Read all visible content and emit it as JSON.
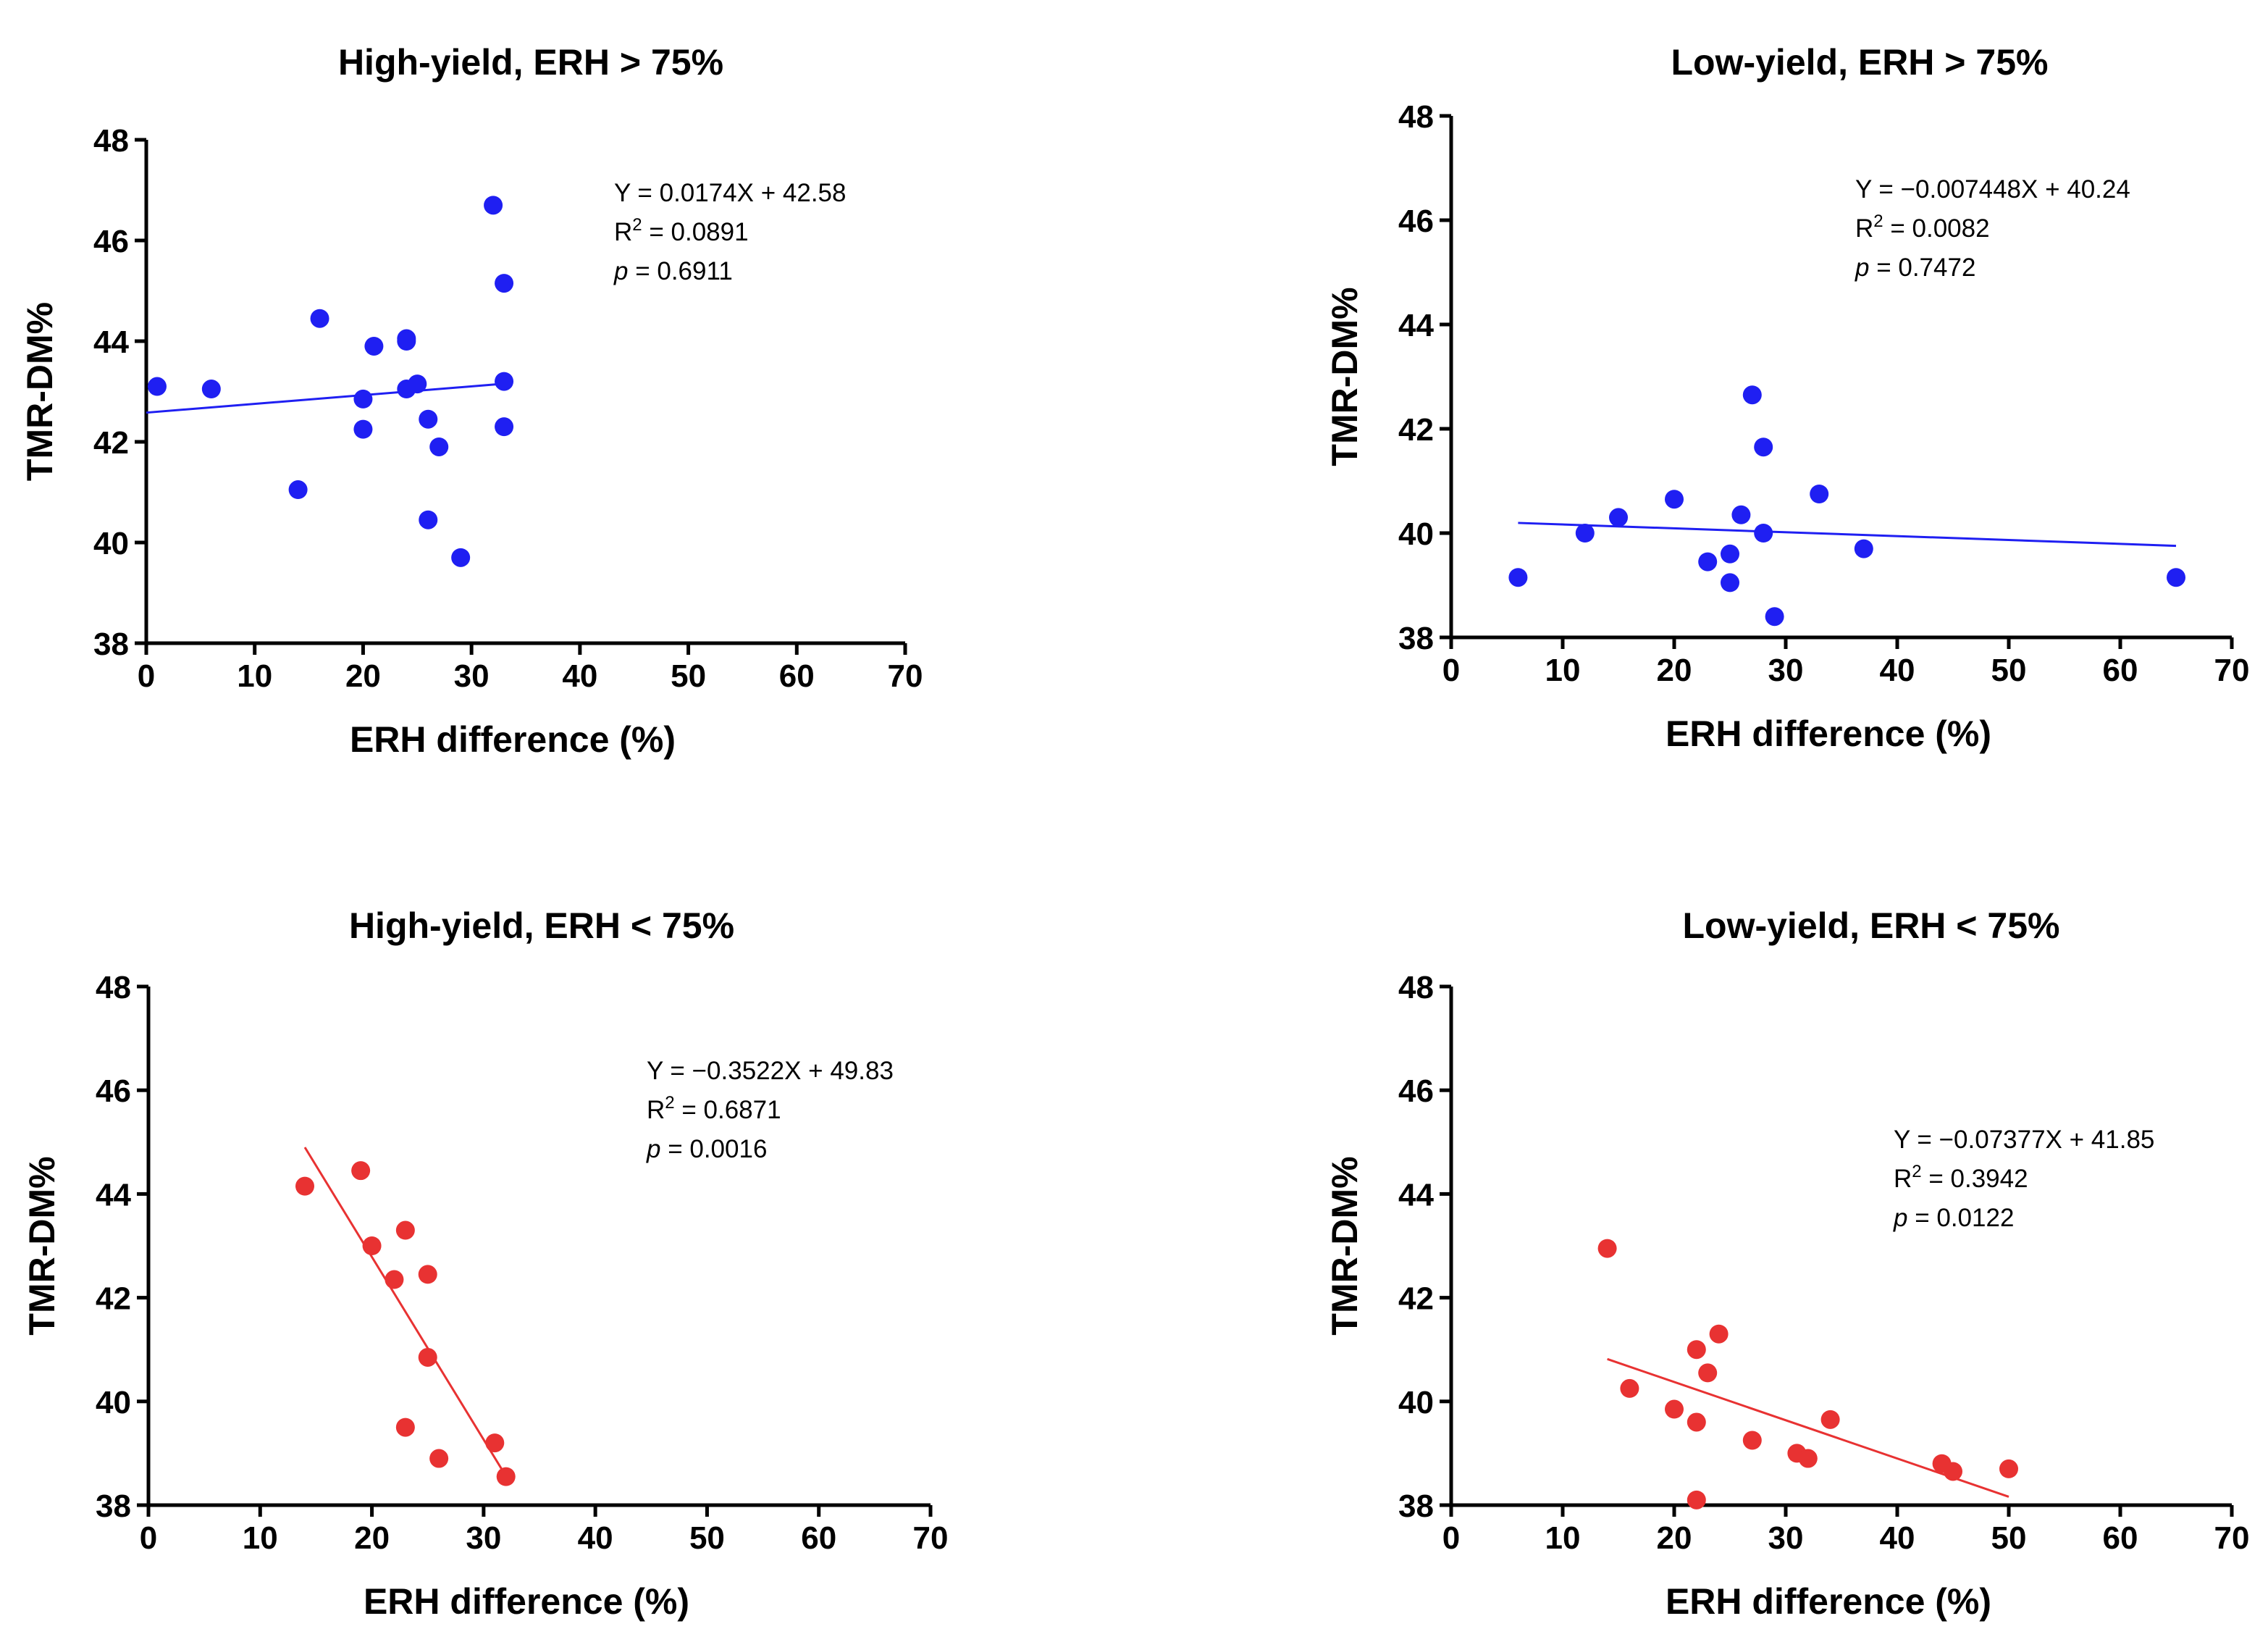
{
  "chart_data": [
    {
      "type": "scatter",
      "title": "High-yield, ERH > 75%",
      "xlabel": "ERH difference (%)",
      "ylabel": "TMR-DM%",
      "xlim": [
        0,
        70
      ],
      "ylim": [
        38,
        48
      ],
      "xticks": [
        0,
        10,
        20,
        30,
        40,
        50,
        60,
        70
      ],
      "yticks": [
        38,
        40,
        42,
        44,
        46,
        48
      ],
      "color": "#1f1ff2",
      "points": [
        [
          1,
          43.1
        ],
        [
          6,
          43.05
        ],
        [
          14,
          41.05
        ],
        [
          16,
          44.45
        ],
        [
          20,
          42.85
        ],
        [
          20,
          42.25
        ],
        [
          21,
          43.9
        ],
        [
          24,
          43.05
        ],
        [
          24,
          44.05
        ],
        [
          24,
          44.0
        ],
        [
          25,
          43.15
        ],
        [
          26,
          42.45
        ],
        [
          26,
          40.45
        ],
        [
          27,
          41.9
        ],
        [
          29,
          39.7
        ],
        [
          32,
          46.7
        ],
        [
          33,
          45.15
        ],
        [
          33,
          43.2
        ],
        [
          33,
          42.3
        ]
      ],
      "fit": {
        "slope": 0.0174,
        "intercept": 42.58,
        "x_range": [
          0,
          33
        ]
      },
      "annotation": {
        "equation": "Y = 0.0174X + 42.58",
        "r2_prefix": "R",
        "r2_sup": "2",
        "r2_value": " = 0.0891",
        "p_symbol": "p",
        "p_value": " = 0.6911"
      }
    },
    {
      "type": "scatter",
      "title": "Low-yield, ERH > 75%",
      "xlabel": "ERH difference (%)",
      "ylabel": "TMR-DM%",
      "xlim": [
        0,
        70
      ],
      "ylim": [
        38,
        48
      ],
      "xticks": [
        0,
        10,
        20,
        30,
        40,
        50,
        60,
        70
      ],
      "yticks": [
        38,
        40,
        42,
        44,
        46,
        48
      ],
      "color": "#1f1ff2",
      "points": [
        [
          6,
          39.15
        ],
        [
          12,
          40.0
        ],
        [
          15,
          40.3
        ],
        [
          20,
          40.65
        ],
        [
          23,
          39.45
        ],
        [
          25,
          39.6
        ],
        [
          25,
          39.05
        ],
        [
          26,
          40.35
        ],
        [
          27,
          42.65
        ],
        [
          28,
          41.65
        ],
        [
          28,
          40.0
        ],
        [
          29,
          38.4
        ],
        [
          33,
          40.75
        ],
        [
          37,
          39.7
        ],
        [
          65,
          39.15
        ]
      ],
      "fit": {
        "slope": -0.007448,
        "intercept": 40.24,
        "x_range": [
          6,
          65
        ]
      },
      "annotation": {
        "equation": "Y = −0.007448X + 40.24",
        "r2_prefix": "R",
        "r2_sup": "2",
        "r2_value": " = 0.0082",
        "p_symbol": "p",
        "p_value": " = 0.7472"
      }
    },
    {
      "type": "scatter",
      "title": "High-yield, ERH < 75%",
      "xlabel": "ERH difference (%)",
      "ylabel": "TMR-DM%",
      "xlim": [
        0,
        70
      ],
      "ylim": [
        38,
        48
      ],
      "xticks": [
        0,
        10,
        20,
        30,
        40,
        50,
        60,
        70
      ],
      "yticks": [
        38,
        40,
        42,
        44,
        46,
        48
      ],
      "color": "#e83232",
      "points": [
        [
          14,
          44.15
        ],
        [
          19,
          44.45
        ],
        [
          20,
          43.0
        ],
        [
          22,
          42.35
        ],
        [
          23,
          43.3
        ],
        [
          23,
          39.5
        ],
        [
          25,
          42.45
        ],
        [
          25,
          40.85
        ],
        [
          26,
          38.9
        ],
        [
          31,
          39.2
        ],
        [
          32,
          38.55
        ]
      ],
      "fit": {
        "slope": -0.3522,
        "intercept": 49.83,
        "x_range": [
          14,
          32
        ]
      },
      "annotation": {
        "equation": "Y = −0.3522X + 49.83",
        "r2_prefix": "R",
        "r2_sup": "2",
        "r2_value": " = 0.6871",
        "p_symbol": "p",
        "p_value": " = 0.0016"
      }
    },
    {
      "type": "scatter",
      "title": "Low-yield, ERH < 75%",
      "xlabel": "ERH difference (%)",
      "ylabel": "TMR-DM%",
      "xlim": [
        0,
        70
      ],
      "ylim": [
        38,
        48
      ],
      "xticks": [
        0,
        10,
        20,
        30,
        40,
        50,
        60,
        70
      ],
      "yticks": [
        38,
        40,
        42,
        44,
        46,
        48
      ],
      "color": "#e83232",
      "points": [
        [
          14,
          42.95
        ],
        [
          16,
          40.25
        ],
        [
          20,
          39.85
        ],
        [
          22,
          41.0
        ],
        [
          22,
          39.6
        ],
        [
          22,
          38.1
        ],
        [
          23,
          40.55
        ],
        [
          24,
          41.3
        ],
        [
          27,
          39.25
        ],
        [
          31,
          39.0
        ],
        [
          32,
          38.9
        ],
        [
          34,
          39.65
        ],
        [
          44,
          38.8
        ],
        [
          45,
          38.65
        ],
        [
          50,
          38.7
        ]
      ],
      "fit": {
        "slope": -0.07377,
        "intercept": 41.85,
        "x_range": [
          14,
          50
        ]
      },
      "annotation": {
        "equation": "Y = −0.07377X + 41.85",
        "r2_prefix": "R",
        "r2_sup": "2",
        "r2_value": " = 0.3942",
        "p_symbol": "p",
        "p_value": " = 0.0122"
      }
    }
  ]
}
